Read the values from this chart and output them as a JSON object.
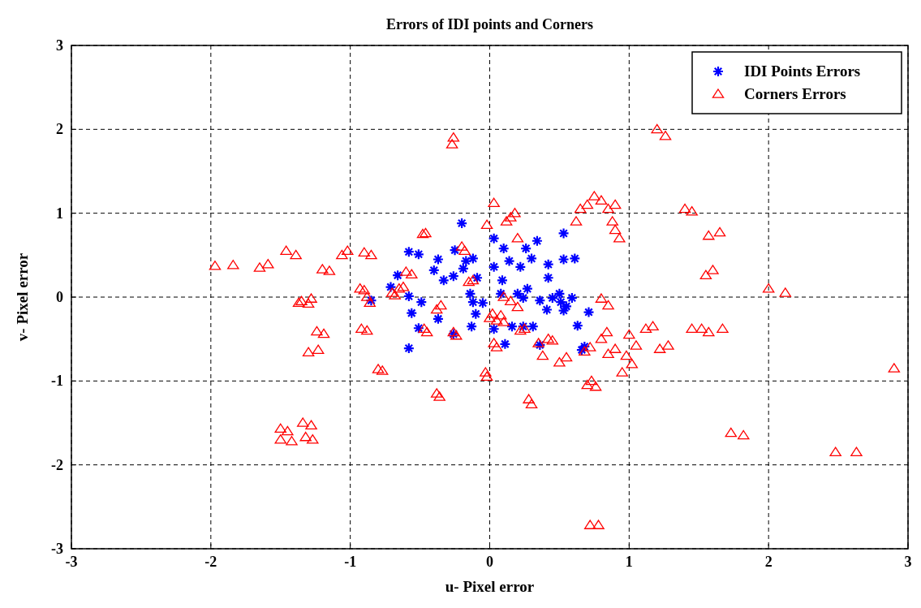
{
  "chart_data": {
    "type": "scatter",
    "title": "Errors of IDI points and Corners",
    "xlabel": "u- Pixel error",
    "ylabel": "v- Pixel error",
    "xlim": [
      -3,
      3
    ],
    "ylim": [
      -3,
      3
    ],
    "xticks": [
      -3,
      -2,
      -1,
      0,
      1,
      2,
      3
    ],
    "yticks": [
      -3,
      -2,
      -1,
      0,
      1,
      2,
      3
    ],
    "grid": true,
    "legend": "top right",
    "series": [
      {
        "name": "IDI Points Errors",
        "color": "#0000ff",
        "marker": "cross",
        "x": [
          -0.2,
          -0.58,
          -0.51,
          -0.37,
          -0.4,
          -0.66,
          -0.33,
          -0.26,
          -0.25,
          -0.17,
          -0.12,
          -0.19,
          -0.09,
          -0.14,
          -0.12,
          -0.05,
          -0.1,
          -0.13,
          0.03,
          0.03,
          0.09,
          0.1,
          0.14,
          0.22,
          0.26,
          0.3,
          0.34,
          0.53,
          0.42,
          0.42,
          0.53,
          0.61,
          0.08,
          0.2,
          0.27,
          0.24,
          0.36,
          0.41,
          0.5,
          0.51,
          0.55,
          0.59,
          0.53,
          0.45,
          0.71,
          0.63,
          0.68,
          0.66,
          0.31,
          0.24,
          0.16,
          0.03,
          0.11,
          0.36,
          -0.58,
          -0.49,
          -0.56,
          -0.37,
          -0.51,
          -0.58,
          -0.71,
          -0.85,
          -0.26
        ],
        "values": [
          0.88,
          0.54,
          0.51,
          0.45,
          0.32,
          0.26,
          0.2,
          0.25,
          0.56,
          0.43,
          0.46,
          0.34,
          0.23,
          0.04,
          -0.06,
          -0.07,
          -0.2,
          -0.35,
          0.7,
          0.36,
          0.2,
          0.58,
          0.43,
          0.36,
          0.58,
          0.46,
          0.67,
          0.76,
          0.39,
          0.23,
          0.45,
          0.46,
          0.04,
          0.04,
          0.1,
          -0.01,
          -0.04,
          -0.15,
          0.04,
          -0.06,
          -0.11,
          -0.01,
          -0.16,
          -0.01,
          -0.18,
          -0.34,
          -0.59,
          -0.63,
          -0.35,
          -0.35,
          -0.35,
          -0.38,
          -0.56,
          -0.57,
          0.01,
          -0.06,
          -0.19,
          -0.26,
          -0.37,
          -0.61,
          0.12,
          -0.04,
          -0.44
        ]
      },
      {
        "name": "Corners Errors",
        "color": "#ff0000",
        "marker": "triangle",
        "x": [
          -0.26,
          -0.27,
          1.2,
          1.26,
          0.03,
          -0.02,
          -1.97,
          -1.84,
          -1.65,
          -1.59,
          -1.46,
          -1.39,
          -1.2,
          -1.15,
          -1.06,
          -1.02,
          -1.37,
          -1.35,
          -1.3,
          -1.28,
          -1.24,
          -1.19,
          -1.3,
          -1.23,
          -1.5,
          -1.45,
          -1.34,
          -1.28,
          -1.5,
          -1.42,
          -1.32,
          -1.27,
          -0.93,
          -0.9,
          -0.88,
          -0.86,
          -0.92,
          -0.88,
          -0.8,
          -0.77,
          -0.9,
          -0.85,
          -0.7,
          -0.68,
          -0.65,
          -0.62,
          -0.6,
          -0.56,
          -0.48,
          -0.46,
          -0.47,
          -0.45,
          -0.38,
          -0.35,
          -0.38,
          -0.36,
          -0.26,
          -0.24,
          -0.2,
          -0.18,
          -0.15,
          -0.12,
          -0.03,
          -0.02,
          0.0,
          0.02,
          0.05,
          0.08,
          0.1,
          0.03,
          0.05,
          0.12,
          0.15,
          0.18,
          0.2,
          0.1,
          0.15,
          0.2,
          0.22,
          0.25,
          0.28,
          0.3,
          0.35,
          0.38,
          0.42,
          0.45,
          0.5,
          0.55,
          0.62,
          0.65,
          0.7,
          0.75,
          0.8,
          0.85,
          0.9,
          0.88,
          0.9,
          0.93,
          0.68,
          0.72,
          0.7,
          0.73,
          0.76,
          0.72,
          0.78,
          0.8,
          0.84,
          0.85,
          0.9,
          0.95,
          0.98,
          1.0,
          1.02,
          1.05,
          0.8,
          0.85,
          1.12,
          1.17,
          1.22,
          1.28,
          1.4,
          1.45,
          1.57,
          1.65,
          1.55,
          1.6,
          1.45,
          1.52,
          1.57,
          1.67,
          1.73,
          1.82,
          2.0,
          2.12,
          2.48,
          2.63,
          2.9
        ],
        "values": [
          1.9,
          1.82,
          2.0,
          1.92,
          1.12,
          0.86,
          0.37,
          0.38,
          0.35,
          0.39,
          0.55,
          0.5,
          0.33,
          0.31,
          0.5,
          0.55,
          -0.07,
          -0.05,
          -0.08,
          -0.02,
          -0.41,
          -0.44,
          -0.66,
          -0.63,
          -1.57,
          -1.6,
          -1.5,
          -1.53,
          -1.7,
          -1.72,
          -1.67,
          -1.7,
          0.1,
          0.08,
          0.0,
          -0.07,
          -0.38,
          -0.4,
          -0.86,
          -0.88,
          0.53,
          0.5,
          0.05,
          0.02,
          0.1,
          0.12,
          0.3,
          0.27,
          0.75,
          0.76,
          -0.38,
          -0.42,
          -0.15,
          -0.1,
          -1.15,
          -1.19,
          -0.42,
          -0.46,
          0.6,
          0.55,
          0.18,
          0.2,
          -0.9,
          -0.95,
          -0.25,
          -0.2,
          -0.28,
          -0.22,
          -0.3,
          -0.55,
          -0.6,
          0.9,
          0.95,
          1.0,
          0.7,
          0.0,
          -0.05,
          -0.12,
          -0.4,
          -0.38,
          -1.22,
          -1.28,
          -0.55,
          -0.7,
          -0.5,
          -0.52,
          -0.78,
          -0.72,
          0.9,
          1.05,
          1.1,
          1.2,
          1.15,
          1.05,
          1.1,
          0.9,
          0.8,
          0.7,
          -0.65,
          -0.6,
          -1.05,
          -1.0,
          -1.07,
          -2.72,
          -2.72,
          -0.5,
          -0.42,
          -0.68,
          -0.62,
          -0.9,
          -0.7,
          -0.45,
          -0.8,
          -0.58,
          -0.02,
          -0.1,
          -0.38,
          -0.35,
          -0.62,
          -0.58,
          1.05,
          1.02,
          0.73,
          0.77,
          0.26,
          0.32,
          -0.38,
          -0.38,
          -0.42,
          -0.38,
          -1.62,
          -1.65,
          0.1,
          0.05,
          -1.85,
          -1.85,
          -0.85
        ]
      }
    ]
  }
}
